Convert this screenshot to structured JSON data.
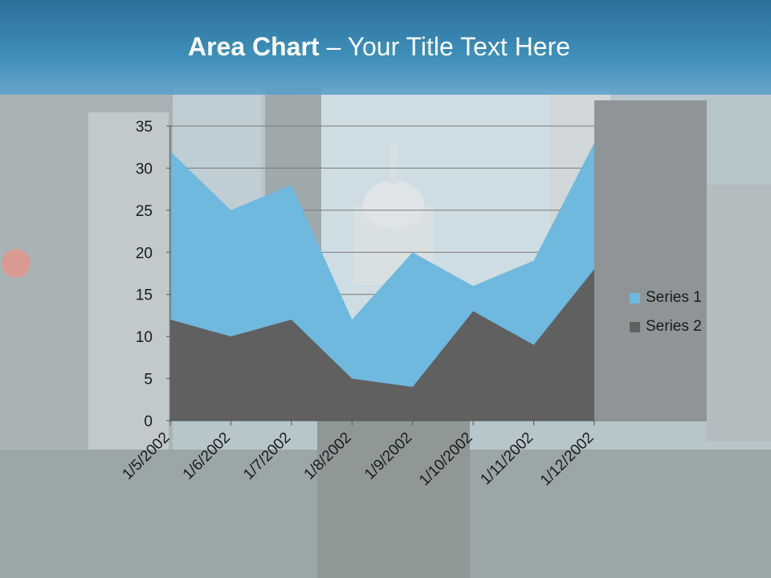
{
  "slide": {
    "title_bold": "Area Chart",
    "title_rest": " – Your Title Text Here"
  },
  "colors": {
    "header": "#3a86b4",
    "series1": "#6fb8de",
    "series2": "#606060",
    "gridline": "#7a7a7a"
  },
  "chart_data": {
    "type": "area",
    "title": "",
    "xlabel": "",
    "ylabel": "",
    "categories": [
      "1/5/2002",
      "1/6/2002",
      "1/7/2002",
      "1/8/2002",
      "1/9/2002",
      "1/10/2002",
      "1/11/2002",
      "1/12/2002"
    ],
    "series": [
      {
        "name": "Series 1",
        "values": [
          32,
          25,
          28,
          12,
          20,
          16,
          19,
          33
        ]
      },
      {
        "name": "Series 2",
        "values": [
          12,
          10,
          12,
          5,
          4,
          13,
          9,
          18
        ]
      }
    ],
    "ylim": [
      0,
      35
    ],
    "yticks": [
      0,
      5,
      10,
      15,
      20,
      25,
      30,
      35
    ],
    "grid": true,
    "legend": "right"
  }
}
